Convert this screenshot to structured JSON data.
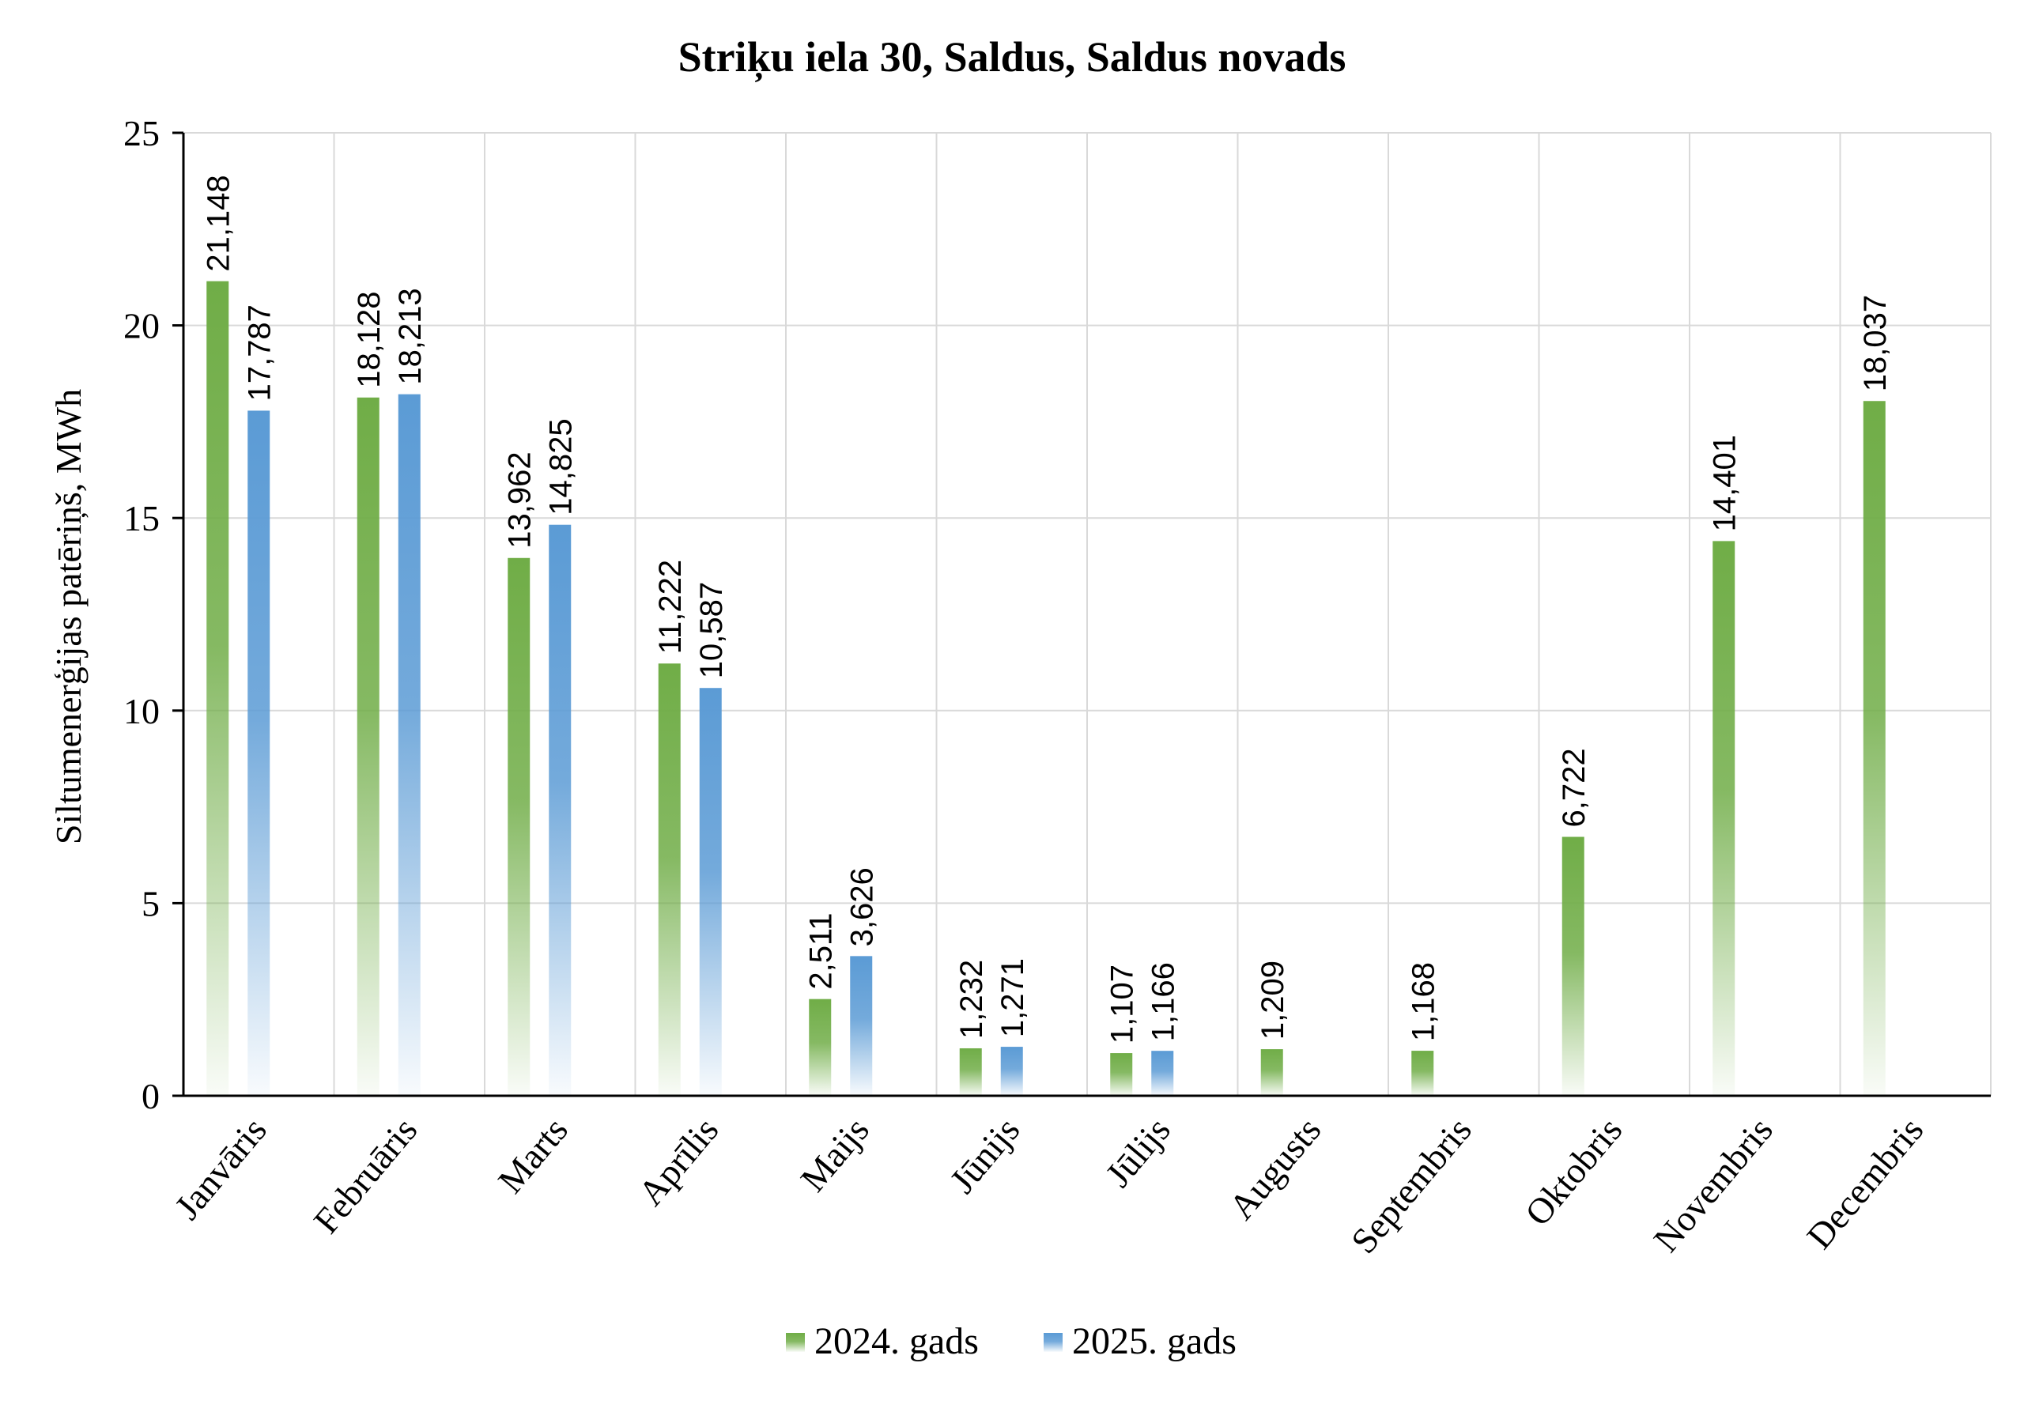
{
  "chart_data": {
    "type": "bar",
    "title": "Striķu iela 30, Saldus, Saldus novads",
    "xlabel": "",
    "ylabel": "Siltumenerģijas patēriņš, MWh",
    "ylim": [
      0,
      25
    ],
    "yticks": [
      0,
      5,
      10,
      15,
      20,
      25
    ],
    "grid": true,
    "legend_position": "bottom",
    "categories": [
      "Janvāris",
      "Februāris",
      "Marts",
      "Aprīlis",
      "Maijs",
      "Jūnijs",
      "Jūlijs",
      "Augusts",
      "Septembris",
      "Oktobris",
      "Novembris",
      "Decembris"
    ],
    "series": [
      {
        "name": "2024. gads",
        "color": "#70ad47",
        "values": [
          21.148,
          18.128,
          13.962,
          11.222,
          2.511,
          1.232,
          1.107,
          1.209,
          1.168,
          6.722,
          14.401,
          18.037
        ],
        "labels": [
          "21,148",
          "18,128",
          "13,962",
          "11,222",
          "2,511",
          "1,232",
          "1,107",
          "1,209",
          "1,168",
          "6,722",
          "14,401",
          "18,037"
        ]
      },
      {
        "name": "2025. gads",
        "color": "#5b9bd5",
        "values": [
          17.787,
          18.213,
          14.825,
          10.587,
          3.626,
          1.271,
          1.166,
          null,
          null,
          null,
          null,
          null
        ],
        "labels": [
          "17,787",
          "18,213",
          "14,825",
          "10,587",
          "3,626",
          "1,271",
          "1,166",
          null,
          null,
          null,
          null,
          null
        ]
      }
    ]
  }
}
